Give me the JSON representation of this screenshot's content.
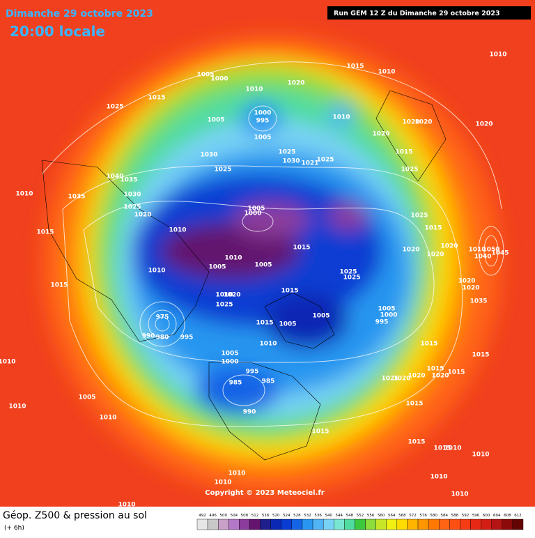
{
  "header": {
    "date": "Dimanche 29 octobre 2023",
    "time": "20:00 locale",
    "run": "Run GEM 12 Z du Dimanche 29 octobre 2023"
  },
  "copyright": "Copyright © 2023 Meteociel.fr",
  "footer": {
    "title": "Géop. Z500 & pression au sol",
    "subtitle": "(+ 6h)"
  },
  "legend": {
    "values": [
      492,
      496,
      500,
      504,
      508,
      512,
      516,
      520,
      524,
      528,
      532,
      536,
      540,
      544,
      548,
      552,
      556,
      560,
      564,
      568,
      572,
      576,
      580,
      584,
      588,
      592,
      596,
      600,
      604,
      608,
      612
    ],
    "colors": [
      "#e6e6e6",
      "#c8c8c8",
      "#c8a0c8",
      "#b478c8",
      "#8c3c9c",
      "#64146e",
      "#1e1e8c",
      "#0a28b4",
      "#0a3cd2",
      "#1464e6",
      "#2896f0",
      "#50b4f5",
      "#78d2f5",
      "#78e6d2",
      "#50dca0",
      "#3cc83c",
      "#8cdc3c",
      "#c8e628",
      "#f0f014",
      "#ffdc00",
      "#ffb400",
      "#ff9600",
      "#ff7800",
      "#ff6414",
      "#ff5014",
      "#f53c14",
      "#e62814",
      "#d21e14",
      "#b41414",
      "#8c0a0a",
      "#640505"
    ]
  },
  "pressure_labels": [
    "1005",
    "1000",
    "1010",
    "1020",
    "1015",
    "1010",
    "1010",
    "1015",
    "1025",
    "1000",
    "995",
    "1010",
    "1005",
    "1005",
    "1020",
    "1020",
    "1020",
    "1020",
    "1030",
    "1025",
    "1030",
    "1021",
    "1025",
    "1015",
    "1025",
    "1025",
    "1040",
    "1035",
    "1010",
    "1035",
    "1030",
    "1025",
    "1020",
    "1005",
    "1000",
    "1025",
    "1015",
    "1010",
    "1015",
    "1020",
    "1020",
    "1015",
    "1010",
    "1050",
    "1045",
    "1040",
    "1020",
    "1010",
    "1005",
    "1010",
    "1005",
    "1025",
    "1025",
    "1015",
    "1020",
    "1020",
    "1015",
    "1020",
    "1010",
    "1025",
    "1035",
    "1005",
    "1000",
    "1005",
    "1015",
    "1005",
    "995",
    "975",
    "990",
    "980",
    "995",
    "1010",
    "1015",
    "1015",
    "1010",
    "1005",
    "1000",
    "995",
    "1015",
    "1015",
    "1020",
    "1020",
    "1021",
    "1020",
    "985",
    "985",
    "1005",
    "1010",
    "990",
    "1015",
    "1010",
    "1015",
    "1015",
    "1010",
    "1015",
    "1010",
    "1010",
    "1010",
    "1010",
    "1010",
    "1010"
  ]
}
